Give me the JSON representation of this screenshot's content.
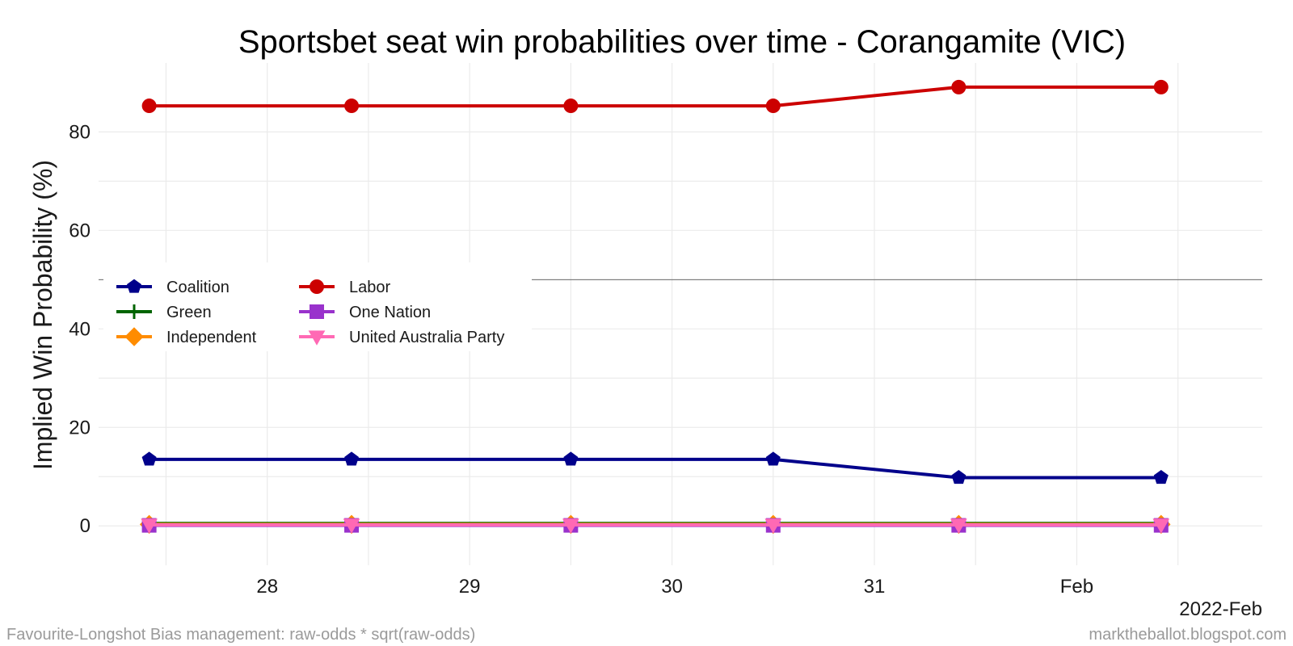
{
  "chart_data": {
    "type": "line",
    "title": "Sportsbet seat win probabilities over time - Corangamite (VIC)",
    "xlabel": "",
    "ylabel": "Implied Win Probability (%)",
    "x_axis_period_label": "2022-Feb",
    "x_tick_labels": [
      "28",
      "29",
      "30",
      "31",
      "Feb"
    ],
    "x_tick_dates": [
      "2022-01-28",
      "2022-01-29",
      "2022-01-30",
      "2022-01-31",
      "2022-02-01"
    ],
    "x": [
      "2022-01-27T10:00",
      "2022-01-28T10:00",
      "2022-01-29T12:00",
      "2022-01-30T12:00",
      "2022-01-31T10:00",
      "2022-02-01T10:00"
    ],
    "xlim": [
      "2022-01-27T04:00",
      "2022-02-01T22:00"
    ],
    "ylim": [
      -8,
      94
    ],
    "y_ticks": [
      0,
      20,
      40,
      60,
      80
    ],
    "reference_line": 50,
    "grid": true,
    "legend_position": "center-left",
    "series": [
      {
        "name": "Coalition",
        "color": "#00008B",
        "marker": "pentagon",
        "values": [
          13.5,
          13.5,
          13.5,
          13.5,
          9.8,
          9.8
        ]
      },
      {
        "name": "Green",
        "color": "#006400",
        "marker": "plus",
        "values": [
          0.5,
          0.5,
          0.5,
          0.5,
          0.5,
          0.5
        ]
      },
      {
        "name": "Independent",
        "color": "#FF8C00",
        "marker": "diamond",
        "values": [
          0.3,
          0.3,
          0.3,
          0.3,
          0.3,
          0.3
        ]
      },
      {
        "name": "Labor",
        "color": "#CC0000",
        "marker": "circle",
        "values": [
          85.3,
          85.3,
          85.3,
          85.3,
          89.1,
          89.1
        ]
      },
      {
        "name": "One Nation",
        "color": "#9932CC",
        "marker": "square",
        "values": [
          0.1,
          0.1,
          0.1,
          0.1,
          0.1,
          0.1
        ]
      },
      {
        "name": "United Australia Party",
        "color": "#FF69B4",
        "marker": "triangle-down",
        "values": [
          0.2,
          0.2,
          0.2,
          0.2,
          0.2,
          0.2
        ]
      }
    ]
  },
  "caption_left": "Favourite-Longshot Bias management: raw-odds * sqrt(raw-odds)",
  "caption_right": "marktheballot.blogspot.com"
}
